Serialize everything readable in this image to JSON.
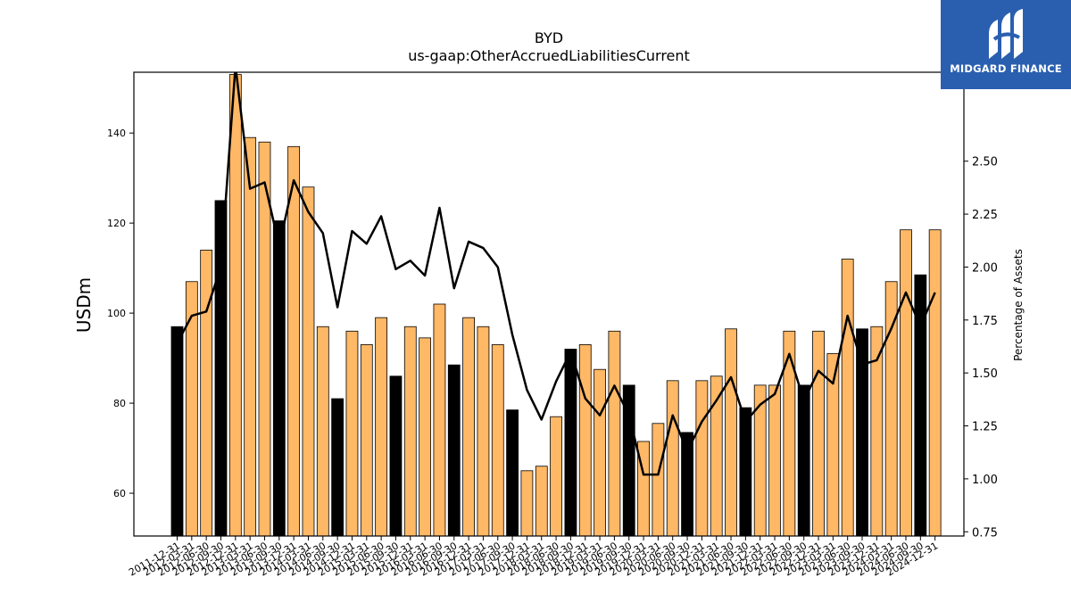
{
  "logo": {
    "text": "MIDGARD FINANCE",
    "background": "#2a5fb0"
  },
  "chart_data": {
    "type": "bar",
    "title": "BYD",
    "subtitle": "us-gaap:OtherAccruedLiabilitiesCurrent",
    "ylabel": "USDm",
    "y2label": "Percentage of Assets",
    "ylim": [
      50.5,
      153.5
    ],
    "y2lim": [
      0.73,
      2.92
    ],
    "yticks": [
      60,
      80,
      100,
      120,
      140
    ],
    "y2ticks": [
      0.75,
      1.0,
      1.25,
      1.5,
      1.75,
      2.0,
      2.25,
      2.5
    ],
    "colors": {
      "annual": "#000000",
      "quarter": "#ffb866",
      "line": "#000000"
    },
    "categories": [
      "2011-12-31",
      "2012-03-31",
      "2012-06-30",
      "2012-09-30",
      "2012-12-31",
      "2013-03-31",
      "2013-06-30",
      "2013-09-30",
      "2013-12-31",
      "2014-03-31",
      "2014-06-30",
      "2014-09-30",
      "2014-12-31",
      "2015-03-31",
      "2015-06-30",
      "2015-09-30",
      "2015-12-31",
      "2016-03-31",
      "2016-06-30",
      "2016-09-30",
      "2016-12-31",
      "2017-03-31",
      "2017-06-30",
      "2017-09-30",
      "2017-12-31",
      "2018-03-31",
      "2018-06-30",
      "2018-09-30",
      "2018-12-31",
      "2019-03-31",
      "2019-06-30",
      "2019-09-30",
      "2019-12-31",
      "2020-03-31",
      "2020-06-30",
      "2020-09-30",
      "2020-12-31",
      "2021-03-31",
      "2021-06-30",
      "2021-09-30",
      "2021-12-31",
      "2022-03-31",
      "2022-06-30",
      "2022-09-30",
      "2022-12-31",
      "2023-03-31",
      "2023-06-30",
      "2023-09-30",
      "2023-12-31",
      "2024-03-31",
      "2024-06-30",
      "2024-09-30",
      "2024-12-31"
    ],
    "series": [
      {
        "type": "bar",
        "values": [
          97,
          107,
          114,
          125,
          153,
          139,
          138,
          120.5,
          137,
          128,
          97,
          81,
          96,
          93,
          99,
          86,
          97,
          94.5,
          102,
          88.5,
          99,
          97,
          93,
          78.5,
          65,
          66,
          77,
          92,
          93,
          87.5,
          96,
          84,
          71.5,
          75.5,
          85,
          73.5,
          85,
          86,
          96.5,
          79,
          84,
          84,
          96,
          84,
          96,
          91,
          112,
          96.5,
          97,
          107,
          118.5,
          108.5,
          118.5
        ],
        "annual": [
          true,
          false,
          false,
          true,
          false,
          false,
          false,
          true,
          false,
          false,
          false,
          true,
          false,
          false,
          false,
          true,
          false,
          false,
          false,
          true,
          false,
          false,
          false,
          true,
          false,
          false,
          false,
          true,
          false,
          false,
          false,
          true,
          false,
          false,
          false,
          true,
          false,
          false,
          false,
          true,
          false,
          false,
          false,
          true,
          false,
          false,
          false,
          true,
          false,
          false,
          false,
          true,
          false
        ]
      },
      {
        "type": "line",
        "axis": "right",
        "values": [
          1.64,
          1.77,
          1.79,
          2.0,
          2.95,
          2.37,
          2.4,
          2.1,
          2.41,
          2.26,
          2.16,
          1.81,
          2.17,
          2.11,
          2.24,
          1.99,
          2.03,
          1.96,
          2.28,
          1.9,
          2.12,
          2.09,
          2.0,
          1.68,
          1.42,
          1.28,
          1.46,
          1.6,
          1.38,
          1.3,
          1.44,
          1.3,
          1.02,
          1.02,
          1.3,
          1.13,
          1.27,
          1.37,
          1.48,
          1.27,
          1.35,
          1.4,
          1.59,
          1.37,
          1.51,
          1.45,
          1.77,
          1.54,
          1.56,
          1.71,
          1.88,
          1.72,
          1.88
        ]
      }
    ]
  }
}
